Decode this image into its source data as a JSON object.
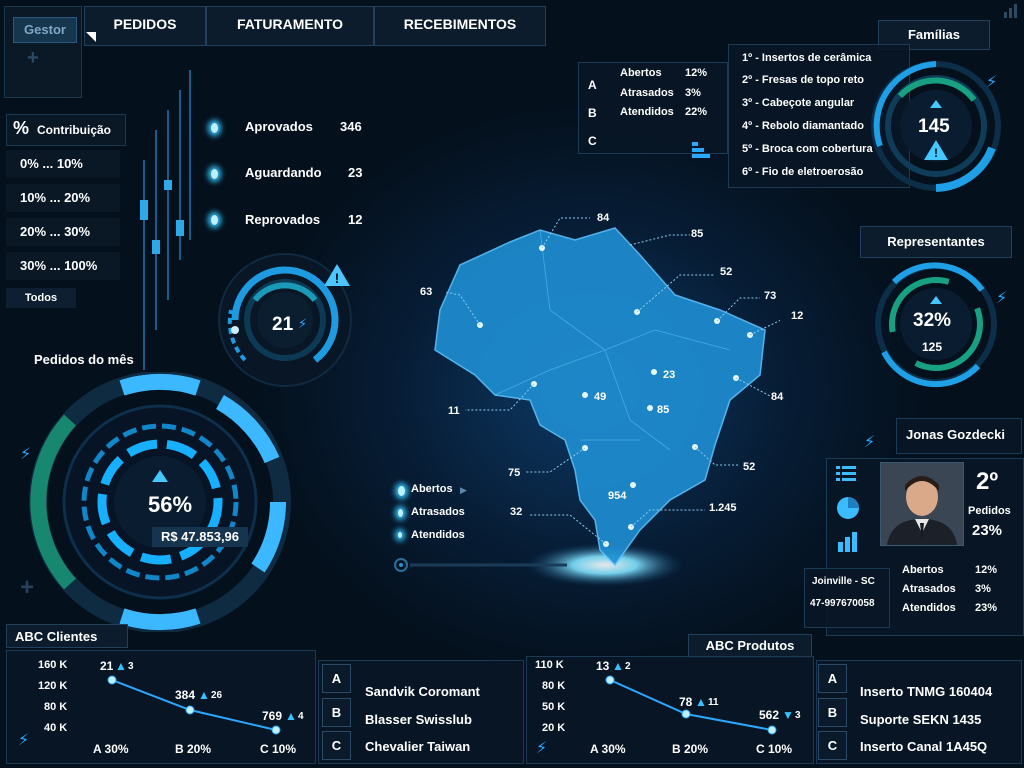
{
  "header": {
    "user_label": "Gestor",
    "tabs": [
      "PEDIDOS",
      "FATURAMENTO",
      "RECEBIMENTOS"
    ]
  },
  "contribution": {
    "title": "Contribuição",
    "symbol": "%",
    "ranges": [
      "0% ... 10%",
      "10% ... 20%",
      "20% ... 30%",
      "30% ... 100%"
    ],
    "all_label": "Todos"
  },
  "status": {
    "items": [
      {
        "label": "Aprovados",
        "value": "346"
      },
      {
        "label": "Aguardando",
        "value": "23"
      },
      {
        "label": "Reprovados",
        "value": "12"
      }
    ],
    "gauge_value": "21"
  },
  "monthly_orders": {
    "title": "Pedidos do mês",
    "percent": "56%",
    "amount": "R$ 47.853,96"
  },
  "order_summary": {
    "rows": [
      {
        "letter": "A",
        "label": "Abertos",
        "value": "12%"
      },
      {
        "letter": "B",
        "label": "Atrasados",
        "value": "3%"
      },
      {
        "letter": "C",
        "label": "Atendidos",
        "value": "22%"
      }
    ]
  },
  "families": {
    "title": "Famílias",
    "total": "145",
    "items": [
      "1º - Insertos de cerâmica",
      "2º - Fresas de topo reto",
      "3º - Cabeçote angular",
      "4º - Rebolo diamantado",
      "5º - Broca com cobertura",
      "6º - Fio de eletroerosão"
    ]
  },
  "representatives": {
    "title": "Representantes",
    "percent": "32%",
    "count": "125"
  },
  "representative": {
    "name": "Jonas Gozdecki",
    "rank": "2º",
    "orders_label": "Pedidos",
    "orders_percent": "23%",
    "city": "Joinville - SC",
    "phone": "47-997670058",
    "stats": [
      {
        "label": "Abertos",
        "value": "12%"
      },
      {
        "label": "Atrasados",
        "value": "3%"
      },
      {
        "label": "Atendidos",
        "value": "23%"
      }
    ]
  },
  "map": {
    "labels": [
      "84",
      "85",
      "52",
      "73",
      "12",
      "63",
      "23",
      "49",
      "85",
      "84",
      "11",
      "75",
      "52",
      "954",
      "32",
      "1.245"
    ],
    "legend": [
      "Abertos",
      "Atrasados",
      "Atendidos"
    ]
  },
  "abc_clients": {
    "title": "ABC Clientes",
    "y_ticks": [
      "160 K",
      "120 K",
      "80 K",
      "40 K"
    ],
    "x_labels": [
      "A 30%",
      "B 20%",
      "C 10%"
    ],
    "points": [
      {
        "value": "21",
        "delta": "3"
      },
      {
        "value": "384",
        "delta": "26"
      },
      {
        "value": "769",
        "delta": "4"
      }
    ],
    "list": [
      {
        "letter": "A",
        "name": "Sandvik Coromant"
      },
      {
        "letter": "B",
        "name": "Blasser Swisslub"
      },
      {
        "letter": "C",
        "name": "Chevalier Taiwan"
      }
    ]
  },
  "abc_products": {
    "title": "ABC Produtos",
    "y_ticks": [
      "110 K",
      "80 K",
      "50 K",
      "20 K"
    ],
    "x_labels": [
      "A 30%",
      "B 20%",
      "C 10%"
    ],
    "points": [
      {
        "value": "13",
        "delta": "2"
      },
      {
        "value": "78",
        "delta": "11"
      },
      {
        "value": "562",
        "delta": "3"
      }
    ],
    "list": [
      {
        "letter": "A",
        "name": "Inserto TNMG 160404"
      },
      {
        "letter": "B",
        "name": "Suporte SEKN 1435"
      },
      {
        "letter": "C",
        "name": "Inserto Canal 1A45Q"
      }
    ]
  }
}
